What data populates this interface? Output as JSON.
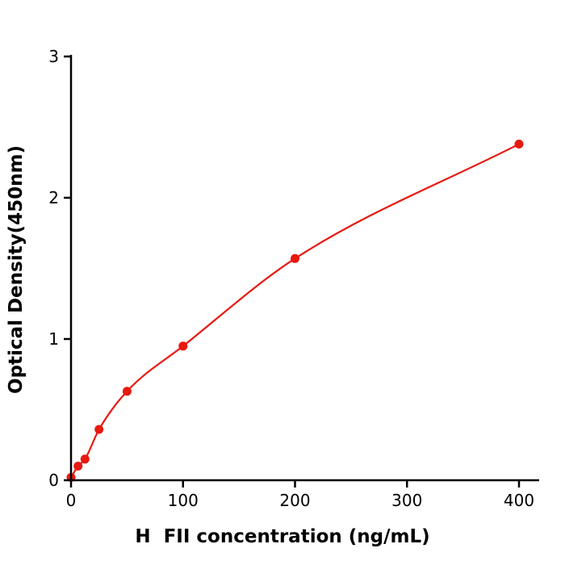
{
  "chart_data": {
    "type": "scatter",
    "x": [
      0,
      6.25,
      12.5,
      25,
      50,
      100,
      200,
      400
    ],
    "y": [
      0.02,
      0.1,
      0.15,
      0.36,
      0.63,
      0.95,
      1.57,
      2.38
    ],
    "title": "",
    "xlabel": "H  FII concentration (ng/mL)",
    "ylabel": "Optical Density(450nm)",
    "xlim": [
      0,
      418
    ],
    "ylim": [
      0,
      3
    ],
    "x_ticks": [
      0,
      100,
      200,
      300,
      400
    ],
    "y_ticks": [
      0,
      1,
      2,
      3
    ],
    "grid": false,
    "legend": null,
    "marker_color": "#e8190f",
    "line_color": "#e8190f",
    "axis_color": "#000000",
    "background": "#ffffff",
    "marker_radius": 5.5,
    "line_width": 2.2
  }
}
